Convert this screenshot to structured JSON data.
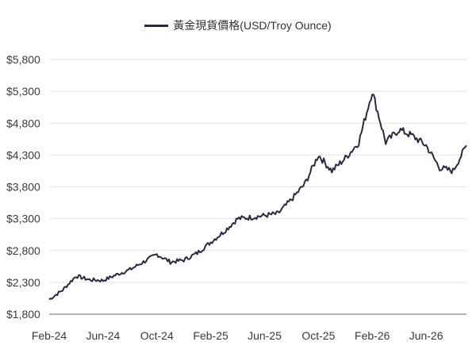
{
  "chart_data": {
    "type": "line",
    "title": "",
    "xlabel": "",
    "ylabel": "",
    "legend_position": "top",
    "grid": true,
    "ylim": [
      1800,
      5800
    ],
    "y_ticks": [
      1800,
      2300,
      2800,
      3300,
      3800,
      4300,
      4800,
      5300,
      5800
    ],
    "y_tick_labels": [
      "$1,800",
      "$2,300",
      "$2,800",
      "$3,300",
      "$3,800",
      "$4,300",
      "$4,800",
      "$5,300",
      "$5,800"
    ],
    "x_tick_labels": [
      "Feb-24",
      "Jun-24",
      "Oct-24",
      "Feb-25",
      "Jun-25",
      "Oct-25",
      "Feb-26",
      "Jun-26"
    ],
    "x_range": [
      "2024-02",
      "2026-09"
    ],
    "line_color": "#2b2b3d",
    "series": [
      {
        "name": "黃金現貨價格(USD/Troy Ounce)",
        "x": [
          "2024-02",
          "2024-03",
          "2024-04",
          "2024-05",
          "2024-06",
          "2024-07",
          "2024-08",
          "2024-09",
          "2024-10",
          "2024-11",
          "2024-12",
          "2025-01",
          "2025-02",
          "2025-03",
          "2025-04",
          "2025-05",
          "2025-06",
          "2025-07",
          "2025-08",
          "2025-09",
          "2025-10",
          "2025-11",
          "2025-12",
          "2026-01",
          "2026-02",
          "2026-03",
          "2026-04",
          "2026-05",
          "2026-06",
          "2026-07",
          "2026-08",
          "2026-09"
        ],
        "values": [
          2030,
          2180,
          2400,
          2340,
          2330,
          2420,
          2500,
          2620,
          2740,
          2620,
          2650,
          2760,
          2930,
          3100,
          3300,
          3320,
          3350,
          3380,
          3600,
          3850,
          4300,
          4050,
          4250,
          4500,
          5300,
          4500,
          4700,
          4600,
          4450,
          4100,
          4050,
          4450
        ]
      }
    ]
  }
}
